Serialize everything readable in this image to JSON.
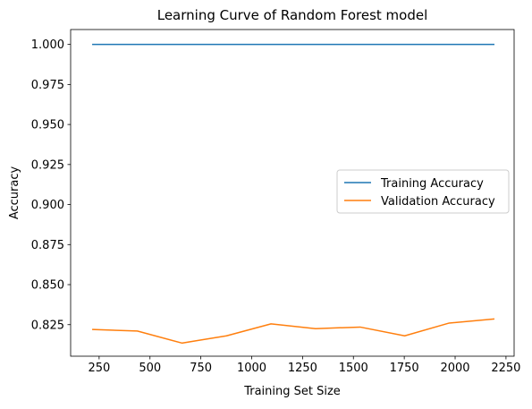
{
  "chart_data": {
    "type": "line",
    "title": "Learning Curve of Random Forest model",
    "xlabel": "Training Set Size",
    "ylabel": "Accuracy",
    "xlim": [
      110,
      2290
    ],
    "ylim": [
      0.8053,
      1.0093
    ],
    "xticks": [
      250,
      500,
      750,
      1000,
      1250,
      1500,
      1750,
      2000,
      2250
    ],
    "xtick_labels": [
      "250",
      "500",
      "750",
      "1000",
      "1250",
      "1500",
      "1750",
      "2000",
      "2250"
    ],
    "yticks": [
      0.825,
      0.85,
      0.875,
      0.9,
      0.925,
      0.95,
      0.975,
      1.0
    ],
    "ytick_labels": [
      "0.825",
      "0.850",
      "0.875",
      "0.900",
      "0.925",
      "0.950",
      "0.975",
      "1.000"
    ],
    "x": [
      219,
      438,
      657,
      876,
      1095,
      1314,
      1533,
      1752,
      1971,
      2190
    ],
    "series": [
      {
        "name": "Training Accuracy",
        "color": "#1f77b4",
        "values": [
          1.0,
          1.0,
          1.0,
          1.0,
          1.0,
          1.0,
          1.0,
          1.0,
          1.0,
          1.0
        ]
      },
      {
        "name": "Validation Accuracy",
        "color": "#ff7f0e",
        "values": [
          0.822,
          0.821,
          0.8135,
          0.818,
          0.8255,
          0.8225,
          0.8235,
          0.818,
          0.826,
          0.8285
        ]
      }
    ],
    "grid": false,
    "legend_position": "center-right"
  }
}
